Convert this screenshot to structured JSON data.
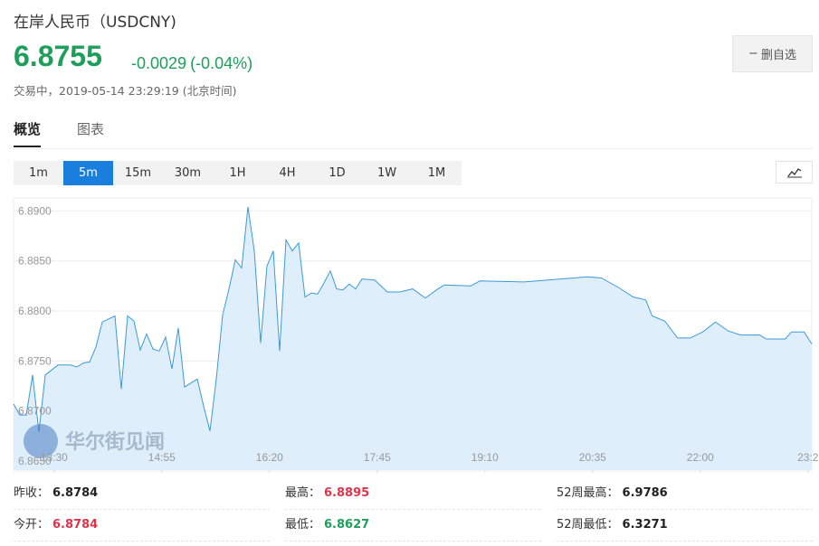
{
  "header": {
    "title": "在岸人民币（USDCNY)",
    "price": "6.8755",
    "change": "-0.0029",
    "change_pct": "(-0.04%)",
    "status": "交易中，2019-05-14 23:29:19 (北京时间)",
    "button": "删自选"
  },
  "tabs": [
    "概览",
    "图表"
  ],
  "periods": [
    "1m",
    "5m",
    "15m",
    "30m",
    "1H",
    "4H",
    "1D",
    "1W",
    "1M"
  ],
  "watermark": "华尔街见闻",
  "chart_data": {
    "type": "area",
    "color": "#3a9ad9",
    "fill": "#dfeefb",
    "grid": true,
    "x": [
      778,
      783,
      788,
      793,
      798,
      803,
      808,
      813,
      823,
      828,
      833,
      838,
      843,
      848,
      858,
      863,
      868,
      873,
      878,
      883,
      888,
      893,
      898,
      903,
      908,
      913,
      923,
      928,
      933,
      938,
      943,
      948,
      953,
      958,
      963,
      968,
      973,
      978,
      983,
      988,
      993,
      998,
      1003,
      1008,
      1013,
      1018,
      1023,
      1028,
      1033,
      1038,
      1043,
      1048,
      1053,
      1063,
      1073,
      1083,
      1093,
      1103,
      1113,
      1118,
      1139,
      1146,
      1181,
      1210,
      1231,
      1242,
      1249,
      1256,
      1267,
      1277,
      1282,
      1292,
      1302,
      1312,
      1322,
      1332,
      1342,
      1352,
      1367,
      1372,
      1387,
      1392,
      1402,
      1408
    ],
    "values": [
      6.8707,
      6.8696,
      6.8696,
      6.8736,
      6.8679,
      6.8736,
      6.8741,
      6.8746,
      6.8746,
      6.8744,
      6.8748,
      6.8749,
      6.8764,
      6.8789,
      6.8795,
      6.8722,
      6.8795,
      6.879,
      6.8761,
      6.8777,
      6.8762,
      6.876,
      6.8774,
      6.8742,
      6.8783,
      6.8724,
      6.8732,
      6.8705,
      6.868,
      6.8732,
      6.8796,
      6.8822,
      6.8851,
      6.8843,
      6.8904,
      6.886,
      6.8768,
      6.8845,
      6.886,
      6.876,
      6.8871,
      6.886,
      6.8868,
      6.8814,
      6.8818,
      6.8817,
      6.8828,
      6.884,
      6.8822,
      6.8821,
      6.8827,
      6.8822,
      6.8832,
      6.8831,
      6.8819,
      6.8819,
      6.8822,
      6.8813,
      6.8822,
      6.8826,
      6.8825,
      6.883,
      6.8829,
      6.8832,
      6.8834,
      6.8833,
      6.8828,
      6.8823,
      6.8814,
      6.8811,
      6.8795,
      6.879,
      6.8773,
      6.8773,
      6.8779,
      6.8789,
      6.878,
      6.8776,
      6.8776,
      6.8772,
      6.8772,
      6.8779,
      6.8779,
      6.8767
    ],
    "xlim": [
      778,
      1408
    ],
    "xticks": [
      {
        "value": 810,
        "label": "13:30"
      },
      {
        "value": 895,
        "label": "14:55"
      },
      {
        "value": 980,
        "label": "16:20"
      },
      {
        "value": 1065,
        "label": "17:45"
      },
      {
        "value": 1150,
        "label": "19:10"
      },
      {
        "value": 1235,
        "label": "20:35"
      },
      {
        "value": 1320,
        "label": "22:00"
      },
      {
        "value": 1405,
        "label": "23:2"
      }
    ],
    "ylim": [
      6.8641,
      6.8912
    ],
    "yticks": [
      {
        "value": 6.865,
        "label": "6.8650"
      },
      {
        "value": 6.87,
        "label": "6.8700"
      },
      {
        "value": 6.875,
        "label": "6.8750"
      },
      {
        "value": 6.88,
        "label": "6.8800"
      },
      {
        "value": 6.885,
        "label": "6.8850"
      },
      {
        "value": 6.89,
        "label": "6.8900"
      }
    ]
  },
  "stats": [
    {
      "label": "昨收：",
      "value": "6.8784"
    },
    {
      "label": "最高：",
      "value": "6.8895"
    },
    {
      "label": "52周最高：",
      "value": "6.9786"
    },
    {
      "label": "今开：",
      "value": "6.8784"
    },
    {
      "label": "最低：",
      "value": "6.8627"
    },
    {
      "label": "52周最低：",
      "value": "6.3271"
    }
  ]
}
